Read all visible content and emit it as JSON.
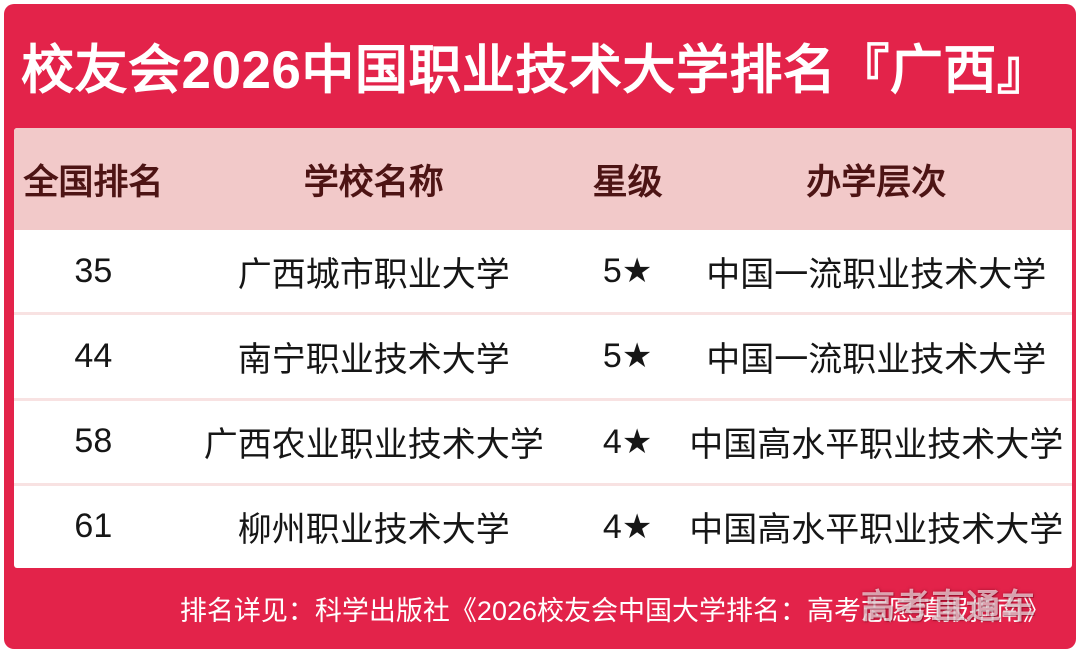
{
  "page": {
    "title": "校友会2026中国职业技术大学排名『广西』",
    "footer": "排名详见：科学出版社《2026校友会中国大学排名：高考志愿填报指南》",
    "watermark": "高考直通车"
  },
  "colors": {
    "brand_red": "#E3234A",
    "header_pink": "#F2C9C9",
    "header_text_maroon": "#4D1414",
    "row_text": "#161616",
    "row_divider": "#F8E2E2",
    "title_text": "#FFFFFF"
  },
  "chart_data": {
    "type": "table",
    "title": "校友会2026中国职业技术大学排名『广西』",
    "columns": [
      "全国排名",
      "学校名称",
      "星级",
      "办学层次"
    ],
    "rows": [
      {
        "rank": "35",
        "name": "广西城市职业大学",
        "star": "5★",
        "level": "中国一流职业技术大学"
      },
      {
        "rank": "44",
        "name": "南宁职业技术大学",
        "star": "5★",
        "level": "中国一流职业技术大学"
      },
      {
        "rank": "58",
        "name": "广西农业职业技术大学",
        "star": "4★",
        "level": "中国高水平职业技术大学"
      },
      {
        "rank": "61",
        "name": "柳州职业技术大学",
        "star": "4★",
        "level": "中国高水平职业技术大学"
      }
    ]
  }
}
